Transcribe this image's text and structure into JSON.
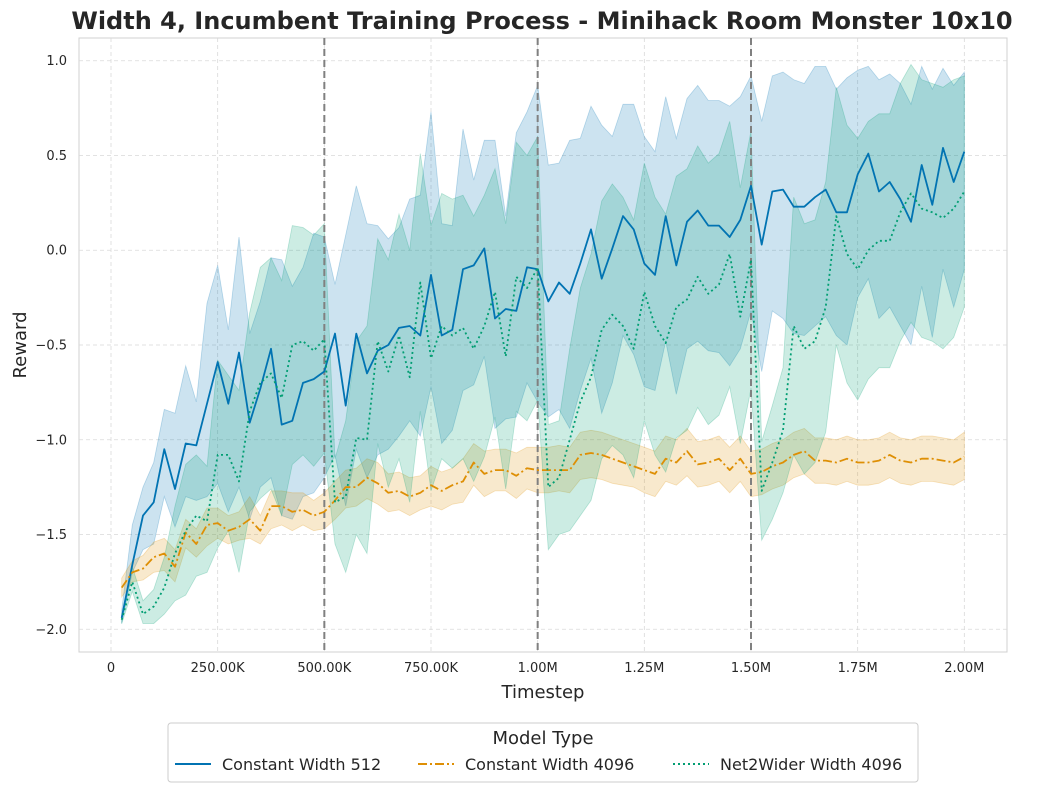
{
  "chart_data": {
    "type": "line",
    "title": "Width 4, Incumbent Training Process - Minihack Room Monster 10x10",
    "xlabel": "Timestep",
    "ylabel": "Reward",
    "xlim": [
      -75000,
      2100000
    ],
    "ylim": [
      -2.12,
      1.12
    ],
    "x_ticks": [
      {
        "value": 0,
        "label": "0"
      },
      {
        "value": 250000,
        "label": "250.00K"
      },
      {
        "value": 500000,
        "label": "500.00K"
      },
      {
        "value": 750000,
        "label": "750.00K"
      },
      {
        "value": 1000000,
        "label": "1.00M"
      },
      {
        "value": 1250000,
        "label": "1.25M"
      },
      {
        "value": 1500000,
        "label": "1.50M"
      },
      {
        "value": 1750000,
        "label": "1.75M"
      },
      {
        "value": 2000000,
        "label": "2.00M"
      }
    ],
    "y_ticks": [
      {
        "value": 1.0,
        "label": "1.0"
      },
      {
        "value": 0.5,
        "label": "0.5"
      },
      {
        "value": 0.0,
        "label": "0.0"
      },
      {
        "value": -0.5,
        "label": "−0.5"
      },
      {
        "value": -1.0,
        "label": "−1.0"
      },
      {
        "value": -1.5,
        "label": "−1.5"
      },
      {
        "value": -2.0,
        "label": "−2.0"
      }
    ],
    "grid": true,
    "vertical_lines": [
      500000,
      1000000,
      1500000
    ],
    "legend": {
      "title": "Model Type",
      "placement": "bottom-center"
    },
    "x_start": 25000,
    "x_step": 25000,
    "series": [
      {
        "name": "Constant Width 512",
        "color": "#0173b2",
        "dash": "solid",
        "values": [
          -1.94,
          -1.66,
          -1.4,
          -1.33,
          -1.05,
          -1.26,
          -1.02,
          -1.03,
          -0.81,
          -0.59,
          -0.81,
          -0.54,
          -0.91,
          -0.73,
          -0.52,
          -0.92,
          -0.9,
          -0.7,
          -0.68,
          -0.64,
          -0.44,
          -0.82,
          -0.44,
          -0.65,
          -0.53,
          -0.5,
          -0.41,
          -0.4,
          -0.45,
          -0.13,
          -0.45,
          -0.42,
          -0.1,
          -0.08,
          0.01,
          -0.36,
          -0.31,
          -0.32,
          -0.09,
          -0.1,
          -0.27,
          -0.17,
          -0.23,
          -0.07,
          0.11,
          -0.15,
          0.01,
          0.18,
          0.11,
          -0.07,
          -0.13,
          0.18,
          -0.08,
          0.15,
          0.21,
          0.13,
          0.13,
          0.07,
          0.16,
          0.34,
          0.03,
          0.31,
          0.32,
          0.23,
          0.23,
          0.28,
          0.32,
          0.2,
          0.2,
          0.4,
          0.51,
          0.31,
          0.36,
          0.27,
          0.15,
          0.45,
          0.24,
          0.54,
          0.36,
          0.52
        ],
        "lower": [
          -1.97,
          -1.7,
          -1.58,
          -1.55,
          -1.3,
          -1.46,
          -1.3,
          -1.32,
          -1.3,
          -1.23,
          -1.38,
          -1.25,
          -1.42,
          -1.25,
          -1.2,
          -1.4,
          -1.42,
          -1.3,
          -1.28,
          -1.2,
          -1.08,
          -1.35,
          -1.05,
          -1.2,
          -1.08,
          -1.05,
          -0.98,
          -0.9,
          -0.98,
          -0.72,
          -1.02,
          -0.95,
          -0.74,
          -0.71,
          -0.56,
          -0.94,
          -0.89,
          -0.88,
          -0.7,
          -0.8,
          -0.88,
          -0.84,
          -0.94,
          -0.74,
          -0.57,
          -0.86,
          -0.7,
          -0.45,
          -0.55,
          -0.72,
          -0.74,
          -0.48,
          -0.76,
          -0.52,
          -0.48,
          -0.53,
          -0.54,
          -0.61,
          -0.52,
          -0.32,
          -0.64,
          -0.32,
          -0.36,
          -0.44,
          -0.45,
          -0.4,
          -0.35,
          -0.45,
          -0.5,
          -0.25,
          -0.15,
          -0.36,
          -0.3,
          -0.4,
          -0.5,
          -0.19,
          -0.46,
          -0.1,
          -0.3,
          -0.1
        ],
        "upper": [
          -1.9,
          -1.45,
          -1.25,
          -1.12,
          -0.84,
          -0.86,
          -0.61,
          -0.8,
          -0.28,
          -0.08,
          -0.42,
          0.07,
          -0.44,
          -0.27,
          -0.04,
          -0.05,
          -0.19,
          -0.09,
          0.09,
          0.07,
          -0.18,
          0.08,
          0.34,
          0.14,
          0.13,
          0.06,
          0.12,
          0.27,
          0.29,
          0.73,
          0.14,
          0.13,
          0.64,
          0.37,
          0.58,
          0.58,
          0.18,
          0.62,
          0.73,
          0.87,
          0.45,
          0.46,
          0.58,
          0.59,
          0.76,
          0.66,
          0.6,
          0.77,
          0.77,
          0.6,
          0.52,
          0.81,
          0.59,
          0.8,
          0.87,
          0.79,
          0.79,
          0.76,
          0.81,
          0.92,
          0.68,
          0.92,
          0.94,
          0.9,
          0.88,
          0.97,
          0.97,
          0.85,
          0.91,
          0.95,
          0.97,
          0.9,
          0.93,
          0.88,
          0.77,
          0.97,
          0.85,
          0.96,
          0.87,
          0.94
        ]
      },
      {
        "name": "Constant Width 4096",
        "color": "#de8f05",
        "dash": "dashdot",
        "values": [
          -1.78,
          -1.7,
          -1.68,
          -1.62,
          -1.6,
          -1.67,
          -1.49,
          -1.55,
          -1.45,
          -1.44,
          -1.48,
          -1.46,
          -1.42,
          -1.48,
          -1.35,
          -1.35,
          -1.38,
          -1.37,
          -1.4,
          -1.38,
          -1.32,
          -1.25,
          -1.25,
          -1.2,
          -1.23,
          -1.28,
          -1.27,
          -1.3,
          -1.28,
          -1.24,
          -1.27,
          -1.24,
          -1.22,
          -1.12,
          -1.18,
          -1.16,
          -1.16,
          -1.19,
          -1.15,
          -1.16,
          -1.16,
          -1.16,
          -1.16,
          -1.08,
          -1.07,
          -1.08,
          -1.1,
          -1.12,
          -1.14,
          -1.16,
          -1.18,
          -1.1,
          -1.12,
          -1.06,
          -1.13,
          -1.12,
          -1.1,
          -1.16,
          -1.1,
          -1.18,
          -1.17,
          -1.14,
          -1.12,
          -1.08,
          -1.06,
          -1.11,
          -1.11,
          -1.12,
          -1.1,
          -1.12,
          -1.12,
          -1.11,
          -1.08,
          -1.11,
          -1.12,
          -1.1,
          -1.1,
          -1.11,
          -1.12,
          -1.09
        ],
        "lower": [
          -1.83,
          -1.75,
          -1.74,
          -1.7,
          -1.69,
          -1.75,
          -1.57,
          -1.62,
          -1.56,
          -1.52,
          -1.55,
          -1.53,
          -1.52,
          -1.55,
          -1.47,
          -1.45,
          -1.48,
          -1.45,
          -1.48,
          -1.47,
          -1.42,
          -1.36,
          -1.35,
          -1.31,
          -1.34,
          -1.38,
          -1.37,
          -1.4,
          -1.37,
          -1.35,
          -1.37,
          -1.34,
          -1.33,
          -1.24,
          -1.3,
          -1.27,
          -1.27,
          -1.31,
          -1.26,
          -1.28,
          -1.28,
          -1.27,
          -1.28,
          -1.21,
          -1.2,
          -1.21,
          -1.23,
          -1.24,
          -1.25,
          -1.28,
          -1.3,
          -1.22,
          -1.24,
          -1.19,
          -1.25,
          -1.24,
          -1.22,
          -1.28,
          -1.22,
          -1.3,
          -1.29,
          -1.26,
          -1.24,
          -1.2,
          -1.18,
          -1.23,
          -1.23,
          -1.24,
          -1.22,
          -1.24,
          -1.24,
          -1.23,
          -1.2,
          -1.23,
          -1.24,
          -1.22,
          -1.22,
          -1.23,
          -1.24,
          -1.21
        ],
        "upper": [
          -1.73,
          -1.64,
          -1.61,
          -1.54,
          -1.52,
          -1.58,
          -1.42,
          -1.47,
          -1.36,
          -1.36,
          -1.4,
          -1.38,
          -1.3,
          -1.4,
          -1.27,
          -1.27,
          -1.28,
          -1.28,
          -1.32,
          -1.28,
          -1.22,
          -1.16,
          -1.15,
          -1.1,
          -1.12,
          -1.18,
          -1.17,
          -1.2,
          -1.19,
          -1.14,
          -1.17,
          -1.15,
          -1.1,
          -1.02,
          -1.06,
          -1.05,
          -1.05,
          -1.07,
          -1.04,
          -1.04,
          -1.04,
          -1.03,
          -1.04,
          -0.96,
          -0.95,
          -0.96,
          -0.98,
          -1.0,
          -1.02,
          -1.04,
          -1.06,
          -0.98,
          -1.0,
          -0.94,
          -1.01,
          -1.0,
          -0.98,
          -1.04,
          -0.98,
          -1.06,
          -1.05,
          -1.02,
          -1.0,
          -0.96,
          -0.94,
          -0.99,
          -0.99,
          -1.0,
          -0.98,
          -1.0,
          -1.0,
          -0.99,
          -0.96,
          -0.99,
          -1.0,
          -0.98,
          -0.98,
          -0.99,
          -1.0,
          -0.96
        ]
      },
      {
        "name": "Net2Wider Width 4096",
        "color": "#029e73",
        "dash": "dotted",
        "values": [
          -1.95,
          -1.75,
          -1.92,
          -1.88,
          -1.78,
          -1.6,
          -1.48,
          -1.4,
          -1.43,
          -1.08,
          -1.08,
          -1.22,
          -0.85,
          -0.7,
          -0.65,
          -0.78,
          -0.5,
          -0.48,
          -0.53,
          -0.47,
          -1.33,
          -1.3,
          -0.99,
          -1.0,
          -0.48,
          -0.64,
          -0.45,
          -0.67,
          -0.17,
          -0.57,
          -0.4,
          -0.45,
          -0.41,
          -0.52,
          -0.4,
          -0.22,
          -0.56,
          -0.14,
          -0.2,
          -0.09,
          -1.25,
          -1.2,
          -1.0,
          -0.8,
          -0.67,
          -0.42,
          -0.34,
          -0.4,
          -0.52,
          -0.22,
          -0.4,
          -0.49,
          -0.3,
          -0.26,
          -0.14,
          -0.23,
          -0.18,
          -0.02,
          -0.35,
          -0.05,
          -1.27,
          -1.12,
          -0.95,
          -0.4,
          -0.52,
          -0.48,
          -0.3,
          0.18,
          -0.02,
          -0.1,
          0.0,
          0.05,
          0.05,
          0.2,
          0.3,
          0.22,
          0.2,
          0.17,
          0.22,
          0.31
        ],
        "lower": [
          -1.97,
          -1.8,
          -1.97,
          -1.97,
          -1.92,
          -1.85,
          -1.82,
          -1.72,
          -1.7,
          -1.57,
          -1.48,
          -1.7,
          -1.38,
          -1.31,
          -1.26,
          -1.4,
          -1.13,
          -1.08,
          -1.14,
          -1.07,
          -1.55,
          -1.7,
          -1.5,
          -1.6,
          -1.02,
          -1.25,
          -1.1,
          -1.33,
          -0.85,
          -1.27,
          -1.1,
          -1.15,
          -1.1,
          -1.22,
          -1.09,
          -0.88,
          -1.26,
          -0.85,
          -0.9,
          -0.79,
          -1.58,
          -1.5,
          -1.48,
          -1.4,
          -1.32,
          -1.1,
          -1.03,
          -1.08,
          -1.2,
          -0.9,
          -1.08,
          -1.17,
          -0.99,
          -0.95,
          -0.83,
          -0.92,
          -0.87,
          -0.72,
          -1.02,
          -0.73,
          -1.53,
          -1.42,
          -1.28,
          -1.08,
          -1.18,
          -1.12,
          -0.96,
          -0.5,
          -0.7,
          -0.79,
          -0.68,
          -0.62,
          -0.62,
          -0.48,
          -0.38,
          -0.46,
          -0.48,
          -0.52,
          -0.46,
          -0.3
        ],
        "upper": [
          -1.93,
          -1.67,
          -1.85,
          -1.79,
          -1.62,
          -1.35,
          -1.13,
          -1.08,
          -1.14,
          -0.58,
          -0.66,
          -0.74,
          -0.33,
          -0.09,
          -0.04,
          -0.16,
          0.13,
          0.12,
          0.08,
          0.14,
          -1.1,
          -0.9,
          -0.48,
          -0.4,
          0.06,
          -0.05,
          0.19,
          0.0,
          0.51,
          0.13,
          0.3,
          0.27,
          0.29,
          0.18,
          0.29,
          0.43,
          0.14,
          0.57,
          0.5,
          0.6,
          -0.92,
          -0.9,
          -0.52,
          -0.2,
          -0.02,
          0.26,
          0.35,
          0.28,
          0.16,
          0.46,
          0.28,
          0.19,
          0.39,
          0.43,
          0.55,
          0.46,
          0.51,
          0.68,
          0.33,
          0.63,
          -1.01,
          -0.82,
          -0.62,
          0.28,
          0.14,
          0.16,
          0.36,
          0.86,
          0.66,
          0.59,
          0.68,
          0.72,
          0.72,
          0.88,
          0.98,
          0.9,
          0.88,
          0.86,
          0.9,
          0.92
        ]
      }
    ]
  }
}
